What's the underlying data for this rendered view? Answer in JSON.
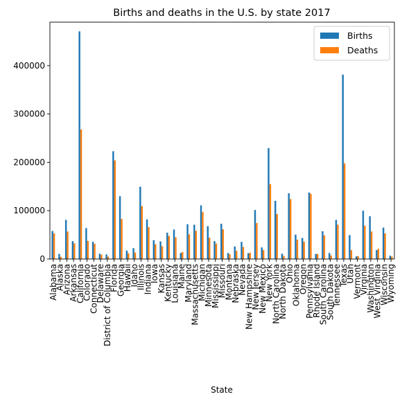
{
  "chart_data": {
    "type": "bar",
    "title": "Births and deaths in the U.S. by state 2017",
    "xlabel": "State",
    "ylabel": "",
    "ylim": [
      0,
      490000
    ],
    "yticks": [
      0,
      100000,
      200000,
      300000,
      400000
    ],
    "grid": false,
    "legend_position": "top-right",
    "categories": [
      "Alabama",
      "Alaska",
      "Arizona",
      "Arkansas",
      "California",
      "Colorado",
      "Connecticut",
      "Delaware",
      "District of Columbia",
      "Florida",
      "Georgia",
      "Hawaii",
      "Idaho",
      "Illinois",
      "Indiana",
      "Iowa",
      "Kansas",
      "Kentucky",
      "Louisiana",
      "Maine",
      "Maryland",
      "Massachusetts",
      "Michigan",
      "Minnesota",
      "Mississippi",
      "Missouri",
      "Montana",
      "Nebraska",
      "Nevada",
      "New Hampshire",
      "New Jersey",
      "New Mexico",
      "New York",
      "North Carolina",
      "North Dakota",
      "Ohio",
      "Oklahoma",
      "Oregon",
      "Pennsylvania",
      "Rhode Island",
      "South Carolina",
      "South Dakota",
      "Tennessee",
      "Texas",
      "Utah",
      "Vermont",
      "Virginia",
      "Washington",
      "West Virginia",
      "Wisconsin",
      "Wyoming"
    ],
    "series": [
      {
        "name": "Births",
        "color": "#1f77b4",
        "values": [
          58000,
          10500,
          81000,
          37000,
          471000,
          64000,
          35500,
          11000,
          9500,
          223000,
          130000,
          17500,
          22500,
          149500,
          82000,
          39000,
          36500,
          54500,
          61000,
          12500,
          72000,
          71000,
          111000,
          68000,
          37000,
          73000,
          12500,
          26000,
          35500,
          12000,
          101500,
          24000,
          229500,
          120500,
          11000,
          136000,
          50500,
          43500,
          137500,
          10500,
          57500,
          12500,
          81000,
          381500,
          49500,
          5500,
          100000,
          88500,
          18500,
          65000,
          7000
        ]
      },
      {
        "name": "Deaths",
        "color": "#ff7f0e",
        "values": [
          53000,
          4500,
          57000,
          32500,
          268000,
          37500,
          31500,
          9000,
          5000,
          204000,
          83000,
          12000,
          13500,
          109500,
          66000,
          30500,
          26500,
          48000,
          45000,
          14500,
          51000,
          58500,
          97500,
          44000,
          32000,
          61500,
          10000,
          17000,
          25000,
          13000,
          74500,
          18500,
          155000,
          93000,
          6500,
          124000,
          40000,
          36000,
          135000,
          10500,
          49000,
          7500,
          71000,
          198000,
          18500,
          6000,
          69000,
          57000,
          21000,
          53000,
          5000
        ]
      }
    ]
  }
}
